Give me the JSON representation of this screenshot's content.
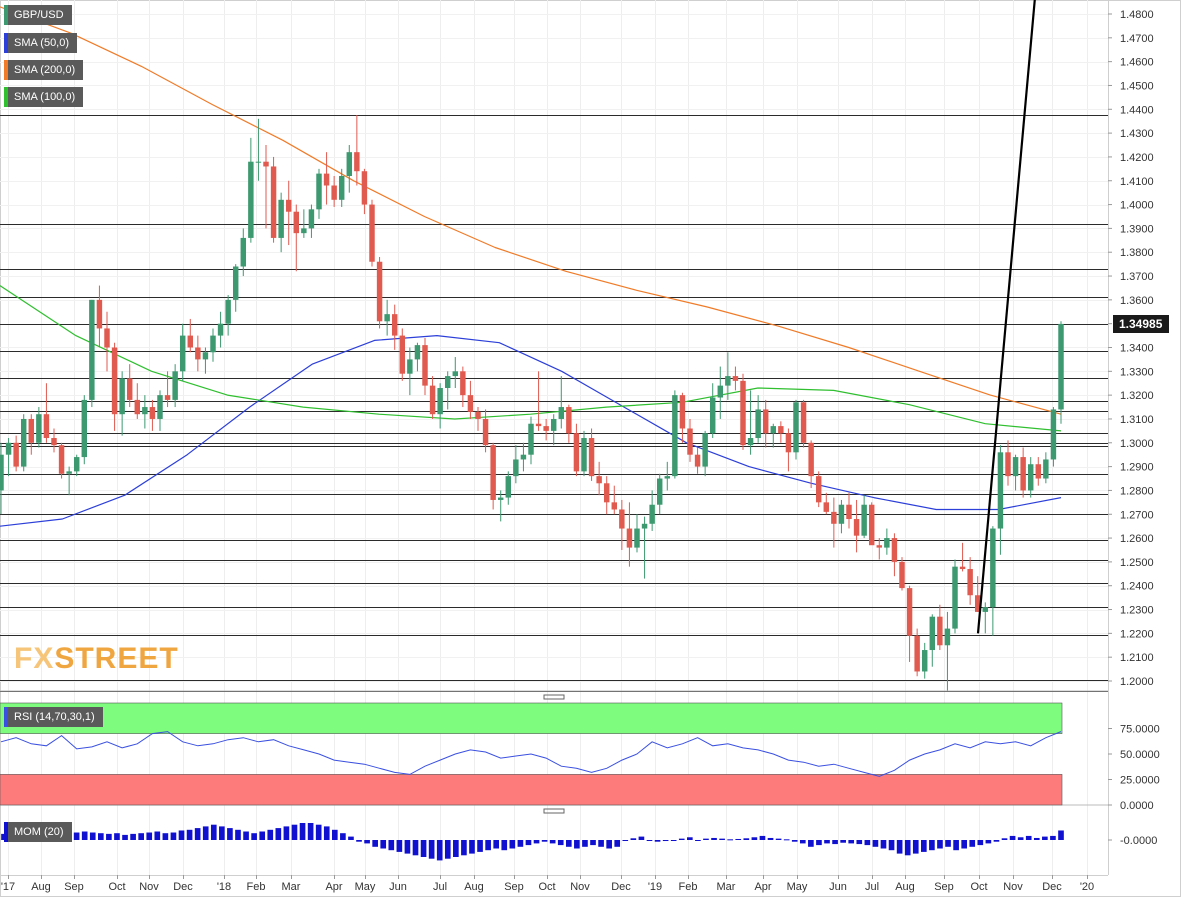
{
  "legend": {
    "symbol": "GBP/USD",
    "sma50": "SMA (50,0)",
    "sma200": "SMA (200,0)",
    "sma100": "SMA (100,0)",
    "rsi": "RSI (14,70,30,1)",
    "mom": "MOM (20)"
  },
  "current_price_label": "1.34985",
  "logo": {
    "fx": "FX",
    "street": "STREET"
  },
  "colors": {
    "up": "#3d9970",
    "down": "#e05a4f",
    "sma50": "#2c3fd8",
    "sma200": "#f07b28",
    "sma100": "#2fbf2f",
    "rsi_line": "#3a50e0",
    "rsi_overbought": "#7dfc7d",
    "rsi_oversold": "#fd7b7b",
    "mom_bar": "#1010d0",
    "trendline": "#000000"
  },
  "chart_data": [
    {
      "type": "candlestick",
      "title": "GBP/USD",
      "x_tick_labels": [
        "'17",
        "Aug",
        "Sep",
        "Oct",
        "Nov",
        "Dec",
        "'18",
        "Feb",
        "Mar",
        "Apr",
        "May",
        "Jun",
        "Jul",
        "Aug",
        "Sep",
        "Oct",
        "Nov",
        "Dec",
        "'19",
        "Feb",
        "Mar",
        "Apr",
        "May",
        "Jun",
        "Jul",
        "Aug",
        "Sep",
        "Oct",
        "Nov",
        "Dec",
        "'20"
      ],
      "y_tick_labels": [
        "1.4800",
        "1.4700",
        "1.4600",
        "1.4500",
        "1.4400",
        "1.4300",
        "1.4200",
        "1.4100",
        "1.4000",
        "1.3900",
        "1.3800",
        "1.3700",
        "1.3600",
        "1.3500",
        "1.3400",
        "1.3300",
        "1.3200",
        "1.3100",
        "1.3000",
        "1.2900",
        "1.2800",
        "1.2700",
        "1.2600",
        "1.2500",
        "1.2400",
        "1.2300",
        "1.2200",
        "1.2100",
        "1.2000"
      ],
      "ylim": [
        1.195,
        1.487
      ],
      "frequency": "weekly",
      "candles": [
        [
          1.28,
          1.3,
          1.27,
          1.295
        ],
        [
          1.295,
          1.302,
          1.286,
          1.3
        ],
        [
          1.3,
          1.303,
          1.288,
          1.29
        ],
        [
          1.29,
          1.312,
          1.288,
          1.31
        ],
        [
          1.31,
          1.312,
          1.295,
          1.3
        ],
        [
          1.3,
          1.315,
          1.298,
          1.312
        ],
        [
          1.312,
          1.325,
          1.3,
          1.302
        ],
        [
          1.302,
          1.306,
          1.296,
          1.299
        ],
        [
          1.299,
          1.3,
          1.285,
          1.287
        ],
        [
          1.287,
          1.29,
          1.278,
          1.288
        ],
        [
          1.288,
          1.295,
          1.286,
          1.294
        ],
        [
          1.294,
          1.32,
          1.291,
          1.318
        ],
        [
          1.318,
          1.36,
          1.315,
          1.36
        ],
        [
          1.36,
          1.366,
          1.34,
          1.348
        ],
        [
          1.348,
          1.355,
          1.33,
          1.34
        ],
        [
          1.34,
          1.342,
          1.305,
          1.312
        ],
        [
          1.312,
          1.33,
          1.303,
          1.327
        ],
        [
          1.327,
          1.333,
          1.315,
          1.318
        ],
        [
          1.318,
          1.325,
          1.31,
          1.312
        ],
        [
          1.312,
          1.32,
          1.306,
          1.315
        ],
        [
          1.315,
          1.318,
          1.305,
          1.31
        ],
        [
          1.31,
          1.322,
          1.305,
          1.32
        ],
        [
          1.32,
          1.33,
          1.315,
          1.318
        ],
        [
          1.318,
          1.333,
          1.315,
          1.33
        ],
        [
          1.33,
          1.35,
          1.326,
          1.345
        ],
        [
          1.345,
          1.352,
          1.338,
          1.34
        ],
        [
          1.34,
          1.345,
          1.33,
          1.335
        ],
        [
          1.335,
          1.34,
          1.329,
          1.338
        ],
        [
          1.338,
          1.348,
          1.334,
          1.345
        ],
        [
          1.345,
          1.355,
          1.34,
          1.35
        ],
        [
          1.35,
          1.362,
          1.345,
          1.36
        ],
        [
          1.36,
          1.375,
          1.355,
          1.374
        ],
        [
          1.374,
          1.39,
          1.37,
          1.386
        ],
        [
          1.386,
          1.428,
          1.384,
          1.418
        ],
        [
          1.418,
          1.436,
          1.41,
          1.418
        ],
        [
          1.418,
          1.425,
          1.39,
          1.416
        ],
        [
          1.416,
          1.42,
          1.384,
          1.386
        ],
        [
          1.386,
          1.405,
          1.38,
          1.402
        ],
        [
          1.402,
          1.41,
          1.383,
          1.397
        ],
        [
          1.397,
          1.4,
          1.372,
          1.388
        ],
        [
          1.388,
          1.398,
          1.386,
          1.39
        ],
        [
          1.39,
          1.4,
          1.386,
          1.398
        ],
        [
          1.398,
          1.415,
          1.394,
          1.413
        ],
        [
          1.413,
          1.422,
          1.4,
          1.408
        ],
        [
          1.408,
          1.412,
          1.399,
          1.402
        ],
        [
          1.402,
          1.415,
          1.399,
          1.412
        ],
        [
          1.412,
          1.425,
          1.405,
          1.422
        ],
        [
          1.422,
          1.4376,
          1.408,
          1.414
        ],
        [
          1.414,
          1.415,
          1.396,
          1.4
        ],
        [
          1.4,
          1.402,
          1.374,
          1.376
        ],
        [
          1.376,
          1.378,
          1.348,
          1.351
        ],
        [
          1.351,
          1.36,
          1.345,
          1.354
        ],
        [
          1.354,
          1.358,
          1.339,
          1.345
        ],
        [
          1.345,
          1.348,
          1.326,
          1.329
        ],
        [
          1.329,
          1.34,
          1.32,
          1.335
        ],
        [
          1.335,
          1.342,
          1.33,
          1.341
        ],
        [
          1.341,
          1.344,
          1.32,
          1.324
        ],
        [
          1.324,
          1.328,
          1.31,
          1.312
        ],
        [
          1.312,
          1.325,
          1.306,
          1.323
        ],
        [
          1.323,
          1.33,
          1.314,
          1.328
        ],
        [
          1.328,
          1.336,
          1.323,
          1.33
        ],
        [
          1.33,
          1.332,
          1.315,
          1.32
        ],
        [
          1.32,
          1.326,
          1.31,
          1.313
        ],
        [
          1.313,
          1.315,
          1.305,
          1.31
        ],
        [
          1.31,
          1.314,
          1.296,
          1.299
        ],
        [
          1.299,
          1.3,
          1.272,
          1.276
        ],
        [
          1.276,
          1.28,
          1.267,
          1.277
        ],
        [
          1.277,
          1.288,
          1.274,
          1.286
        ],
        [
          1.286,
          1.299,
          1.283,
          1.293
        ],
        [
          1.293,
          1.3,
          1.288,
          1.295
        ],
        [
          1.295,
          1.311,
          1.291,
          1.308
        ],
        [
          1.308,
          1.33,
          1.305,
          1.307
        ],
        [
          1.307,
          1.31,
          1.301,
          1.305
        ],
        [
          1.305,
          1.312,
          1.299,
          1.31
        ],
        [
          1.31,
          1.328,
          1.306,
          1.315
        ],
        [
          1.315,
          1.316,
          1.3,
          1.304
        ],
        [
          1.304,
          1.308,
          1.286,
          1.288
        ],
        [
          1.288,
          1.305,
          1.286,
          1.302
        ],
        [
          1.302,
          1.306,
          1.284,
          1.286
        ],
        [
          1.286,
          1.292,
          1.278,
          1.283
        ],
        [
          1.283,
          1.286,
          1.27,
          1.275
        ],
        [
          1.275,
          1.282,
          1.27,
          1.272
        ],
        [
          1.272,
          1.276,
          1.255,
          1.264
        ],
        [
          1.264,
          1.275,
          1.248,
          1.256
        ],
        [
          1.256,
          1.27,
          1.254,
          1.264
        ],
        [
          1.264,
          1.269,
          1.243,
          1.266
        ],
        [
          1.266,
          1.28,
          1.263,
          1.274
        ],
        [
          1.274,
          1.287,
          1.27,
          1.285
        ],
        [
          1.285,
          1.292,
          1.28,
          1.286
        ],
        [
          1.286,
          1.322,
          1.285,
          1.32
        ],
        [
          1.32,
          1.321,
          1.3,
          1.306
        ],
        [
          1.306,
          1.31,
          1.292,
          1.295
        ],
        [
          1.295,
          1.298,
          1.287,
          1.29
        ],
        [
          1.29,
          1.305,
          1.286,
          1.304
        ],
        [
          1.304,
          1.325,
          1.302,
          1.319
        ],
        [
          1.319,
          1.332,
          1.31,
          1.324
        ],
        [
          1.324,
          1.338,
          1.318,
          1.328
        ],
        [
          1.328,
          1.332,
          1.322,
          1.326
        ],
        [
          1.326,
          1.329,
          1.297,
          1.299
        ],
        [
          1.299,
          1.322,
          1.295,
          1.302
        ],
        [
          1.302,
          1.32,
          1.3,
          1.314
        ],
        [
          1.314,
          1.318,
          1.298,
          1.304
        ],
        [
          1.304,
          1.308,
          1.298,
          1.307
        ],
        [
          1.307,
          1.309,
          1.3,
          1.304
        ],
        [
          1.304,
          1.306,
          1.288,
          1.296
        ],
        [
          1.296,
          1.318,
          1.293,
          1.317
        ],
        [
          1.317,
          1.318,
          1.298,
          1.3
        ],
        [
          1.3,
          1.301,
          1.281,
          1.286
        ],
        [
          1.286,
          1.288,
          1.273,
          1.275
        ],
        [
          1.275,
          1.279,
          1.27,
          1.271
        ],
        [
          1.271,
          1.277,
          1.256,
          1.266
        ],
        [
          1.266,
          1.276,
          1.262,
          1.274
        ],
        [
          1.274,
          1.279,
          1.264,
          1.268
        ],
        [
          1.268,
          1.276,
          1.254,
          1.261
        ],
        [
          1.261,
          1.278,
          1.26,
          1.274
        ],
        [
          1.274,
          1.275,
          1.258,
          1.257
        ],
        [
          1.257,
          1.26,
          1.251,
          1.256
        ],
        [
          1.256,
          1.264,
          1.253,
          1.26
        ],
        [
          1.26,
          1.262,
          1.244,
          1.25
        ],
        [
          1.25,
          1.252,
          1.238,
          1.239
        ],
        [
          1.239,
          1.24,
          1.208,
          1.219
        ],
        [
          1.219,
          1.222,
          1.202,
          1.204
        ],
        [
          1.204,
          1.216,
          1.201,
          1.213
        ],
        [
          1.213,
          1.228,
          1.206,
          1.227
        ],
        [
          1.227,
          1.232,
          1.213,
          1.215
        ],
        [
          1.215,
          1.229,
          1.196,
          1.222
        ],
        [
          1.222,
          1.251,
          1.22,
          1.248
        ],
        [
          1.248,
          1.258,
          1.246,
          1.247
        ],
        [
          1.247,
          1.252,
          1.232,
          1.236
        ],
        [
          1.236,
          1.244,
          1.229,
          1.229
        ],
        [
          1.229,
          1.233,
          1.22,
          1.231
        ],
        [
          1.231,
          1.265,
          1.219,
          1.264
        ],
        [
          1.264,
          1.299,
          1.253,
          1.296
        ],
        [
          1.296,
          1.301,
          1.282,
          1.286
        ],
        [
          1.286,
          1.295,
          1.28,
          1.294
        ],
        [
          1.294,
          1.298,
          1.277,
          1.28
        ],
        [
          1.28,
          1.294,
          1.277,
          1.291
        ],
        [
          1.291,
          1.294,
          1.282,
          1.285
        ],
        [
          1.285,
          1.296,
          1.283,
          1.293
        ],
        [
          1.293,
          1.315,
          1.29,
          1.314
        ],
        [
          1.314,
          1.351,
          1.308,
          1.3499
        ]
      ],
      "series": [
        {
          "name": "SMA (50,0)",
          "values": [
            1.265,
            1.268,
            1.278,
            1.295,
            1.315,
            1.333,
            1.343,
            1.345,
            1.342,
            1.33,
            1.315,
            1.3,
            1.29,
            1.283,
            1.277,
            1.272,
            1.272,
            1.277
          ]
        },
        {
          "name": "SMA (200,0)",
          "values": [
            1.483,
            1.472,
            1.458,
            1.442,
            1.427,
            1.41,
            1.395,
            1.382,
            1.372,
            1.364,
            1.357,
            1.349,
            1.34,
            1.33,
            1.32,
            1.312
          ]
        },
        {
          "name": "SMA (100,0)",
          "values": [
            1.366,
            1.345,
            1.33,
            1.32,
            1.315,
            1.312,
            1.31,
            1.312,
            1.315,
            1.317,
            1.323,
            1.322,
            1.316,
            1.308,
            1.305
          ]
        }
      ],
      "trendline": {
        "from": {
          "date": "Oct",
          "price": 1.22
        },
        "to": {
          "date": "Dec",
          "price": 1.487
        }
      },
      "horizontal_levels": [
        1.4375,
        1.392,
        1.373,
        1.361,
        1.35,
        1.3385,
        1.327,
        1.3175,
        1.3135,
        1.304,
        1.3,
        1.2985,
        1.287,
        1.2785,
        1.27,
        1.259,
        1.251,
        1.241,
        1.231,
        1.2195,
        1.2005,
        1.196
      ],
      "last_price": 1.34985
    },
    {
      "type": "line",
      "title": "RSI (14,70,30,1)",
      "y_tick_labels": [
        "75.0000",
        "50.0000",
        "25.0000",
        "0.0000"
      ],
      "ylim": [
        0,
        100
      ],
      "overbought": 70,
      "oversold": 30,
      "values": [
        62,
        66,
        60,
        58,
        68,
        55,
        57,
        62,
        56,
        60,
        70,
        72,
        62,
        58,
        60,
        64,
        66,
        62,
        64,
        58,
        54,
        50,
        44,
        42,
        40,
        36,
        32,
        30,
        38,
        44,
        50,
        54,
        52,
        46,
        48,
        50,
        46,
        38,
        36,
        32,
        36,
        44,
        50,
        62,
        56,
        60,
        66,
        58,
        60,
        56,
        54,
        50,
        44,
        42,
        38,
        40,
        36,
        32,
        28,
        34,
        44,
        50,
        54,
        60,
        56,
        62,
        60,
        62,
        58,
        66,
        72
      ]
    },
    {
      "type": "bar",
      "title": "MOM (20)",
      "y_tick_labels": [
        "-0.0000"
      ],
      "values": [
        0.018,
        0.02,
        0.015,
        0.012,
        0.022,
        0.018,
        0.02,
        0.015,
        0.018,
        0.022,
        0.025,
        0.022,
        0.02,
        0.018,
        0.02,
        0.015,
        0.018,
        0.02,
        0.022,
        0.025,
        0.02,
        0.022,
        0.028,
        0.03,
        0.035,
        0.04,
        0.045,
        0.04,
        0.035,
        0.03,
        0.025,
        0.02,
        0.025,
        0.03,
        0.035,
        0.04,
        0.045,
        0.05,
        0.05,
        0.045,
        0.04,
        0.03,
        0.02,
        0.01,
        -0.005,
        -0.01,
        -0.02,
        -0.025,
        -0.03,
        -0.035,
        -0.04,
        -0.045,
        -0.05,
        -0.055,
        -0.06,
        -0.055,
        -0.05,
        -0.045,
        -0.04,
        -0.035,
        -0.03,
        -0.025,
        -0.03,
        -0.025,
        -0.02,
        -0.015,
        -0.01,
        -0.005,
        -0.01,
        -0.015,
        -0.02,
        -0.025,
        -0.02,
        -0.015,
        -0.02,
        -0.025,
        -0.02,
        0.0,
        0.005,
        0.01,
        0.0,
        -0.005,
        -0.003,
        0.0,
        0.004,
        0.008,
        0.0,
        0.004,
        0.006,
        0.004,
        0.002,
        0.003,
        0.005,
        0.008,
        0.012,
        0.006,
        0.004,
        0.002,
        -0.005,
        -0.01,
        -0.02,
        -0.015,
        -0.01,
        -0.012,
        -0.008,
        -0.01,
        -0.012,
        -0.015,
        -0.02,
        -0.025,
        -0.03,
        -0.04,
        -0.045,
        -0.04,
        -0.035,
        -0.03,
        -0.025,
        -0.02,
        -0.03,
        -0.025,
        -0.02,
        -0.015,
        -0.01,
        -0.005,
        0.005,
        0.012,
        0.008,
        0.012,
        0.006,
        0.01,
        0.012,
        0.028
      ]
    }
  ]
}
